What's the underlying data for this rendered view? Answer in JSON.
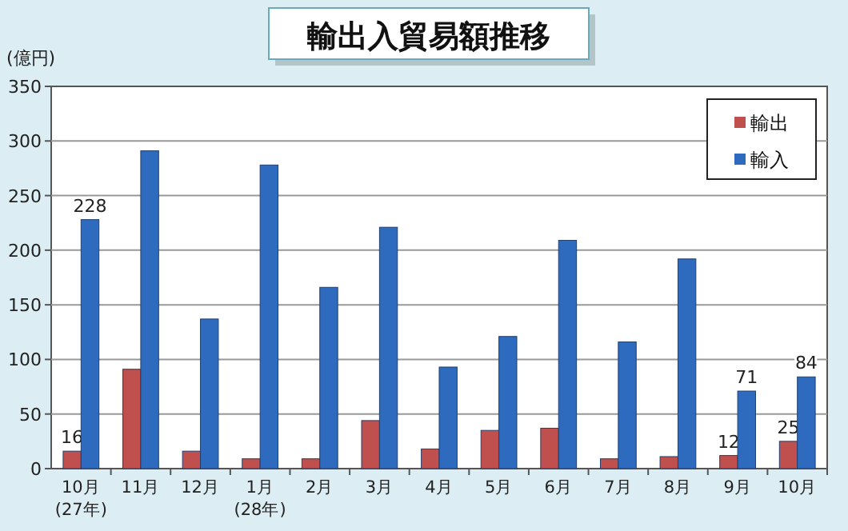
{
  "chart_data": {
    "type": "bar",
    "title": "輸出入貿易額推移",
    "ylabel": "(億円)",
    "categories": [
      "10月\n(27年)",
      "11月",
      "12月",
      "1月\n(28年)",
      "2月",
      "3月",
      "4月",
      "5月",
      "6月",
      "7月",
      "8月",
      "9月",
      "10月"
    ],
    "series": [
      {
        "name": "輸出",
        "color": "#c0504d",
        "values": [
          16,
          91,
          16,
          9,
          9,
          44,
          18,
          35,
          37,
          9,
          11,
          12,
          25
        ],
        "value_labels": [
          "16",
          null,
          null,
          null,
          null,
          null,
          null,
          null,
          null,
          null,
          null,
          "12",
          "25"
        ]
      },
      {
        "name": "輸入",
        "color": "#2e6bbf",
        "values": [
          228,
          291,
          137,
          278,
          166,
          221,
          93,
          121,
          209,
          116,
          192,
          71,
          84
        ],
        "value_labels": [
          "228",
          null,
          null,
          null,
          null,
          null,
          null,
          null,
          null,
          null,
          null,
          "71",
          "84"
        ]
      }
    ],
    "ylim": [
      0,
      350
    ],
    "yticks": [
      0,
      50,
      100,
      150,
      200,
      250,
      300,
      350
    ],
    "grid": "y",
    "legend": "top right"
  }
}
